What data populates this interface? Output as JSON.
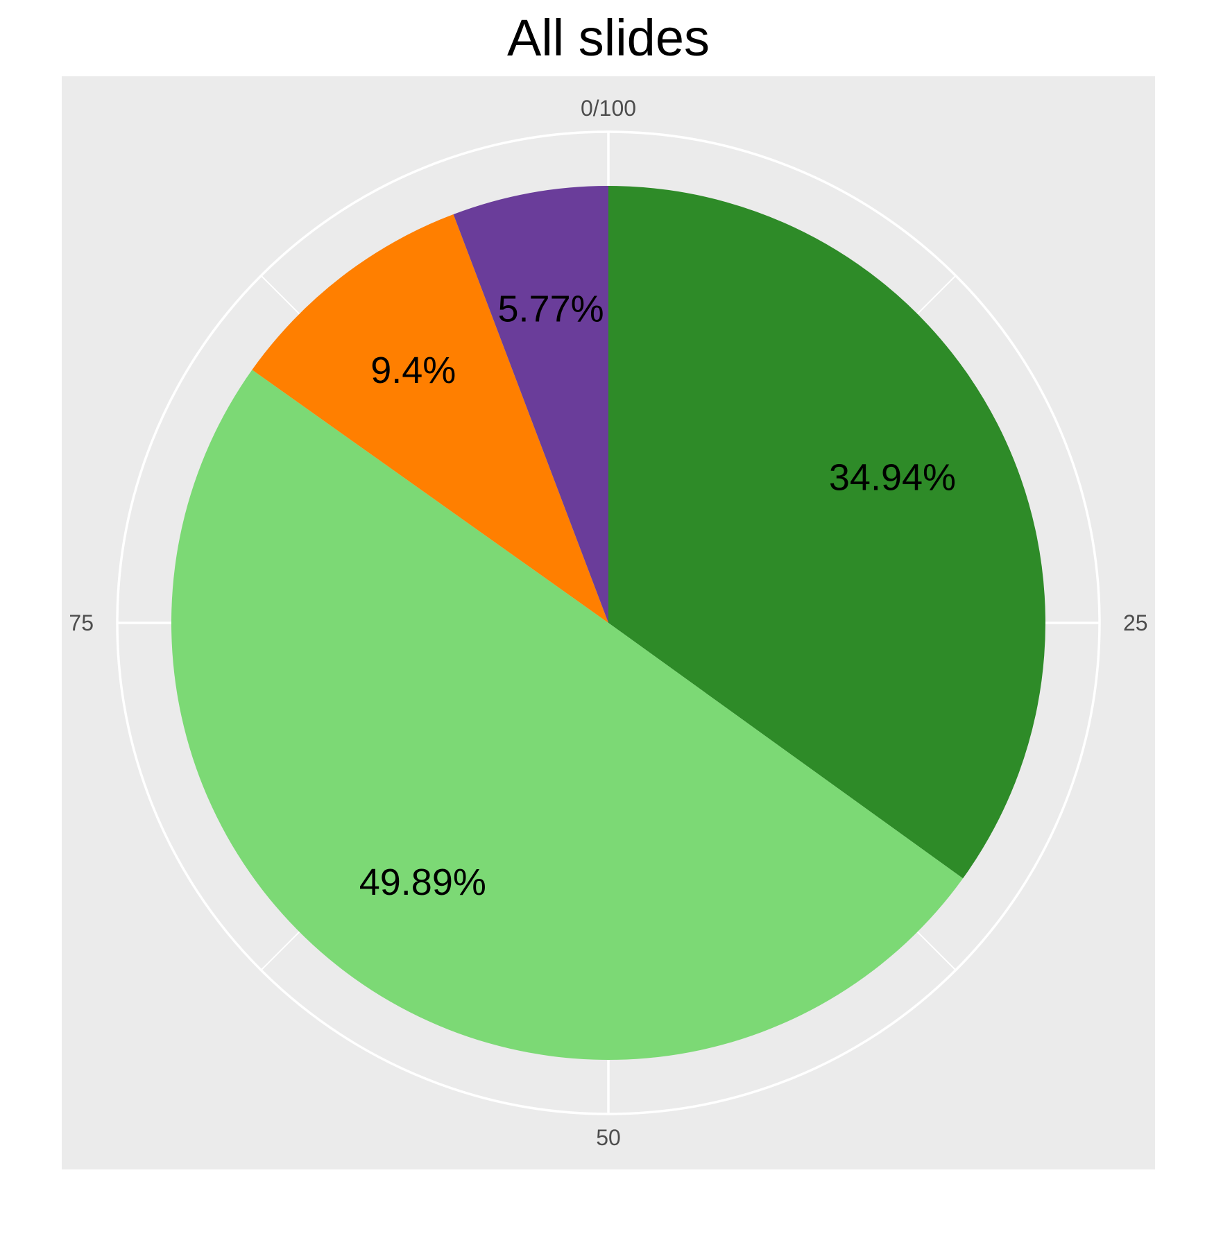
{
  "chart_data": {
    "type": "pie",
    "title": "All slides",
    "slices": [
      {
        "label": "34.94%",
        "value": 34.94,
        "color": "#2e8b28"
      },
      {
        "label": "49.89%",
        "value": 49.89,
        "color": "#7cd975"
      },
      {
        "label": "9.4%",
        "value": 9.4,
        "color": "#ff7f00"
      },
      {
        "label": "5.77%",
        "value": 5.77,
        "color": "#6a3d9a"
      }
    ],
    "angular_axis": {
      "range": [
        0,
        100
      ],
      "tick_labels": [
        {
          "value": 0,
          "label": "0/100"
        },
        {
          "value": 25,
          "label": "25"
        },
        {
          "value": 50,
          "label": "50"
        },
        {
          "value": 75,
          "label": "75"
        }
      ],
      "minor_ticks": [
        12.5,
        37.5,
        62.5,
        87.5
      ]
    },
    "grid": true,
    "panel_background": "#ebebeb",
    "grid_color": "#ffffff",
    "label_color": "#000000",
    "tick_label_color": "#4d4d4d"
  }
}
